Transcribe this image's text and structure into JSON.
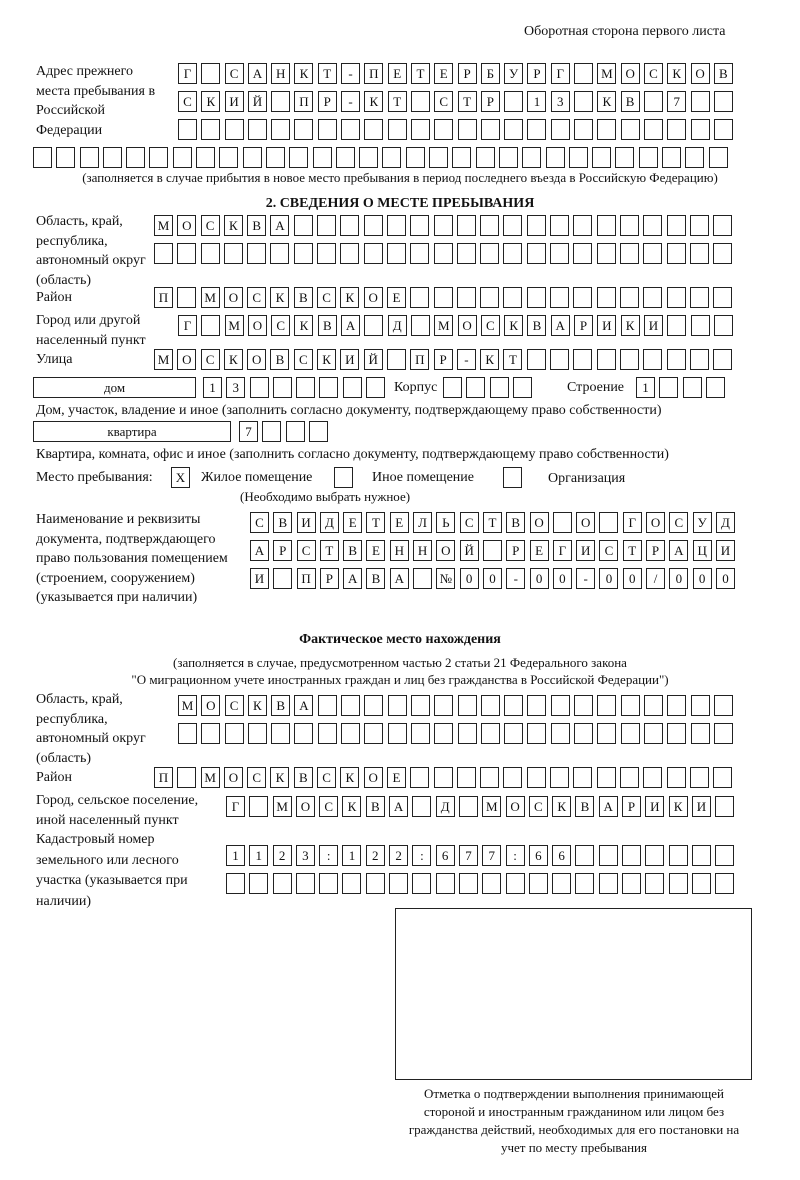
{
  "header": {
    "sheet_side": "Оборотная сторона первого листа"
  },
  "previous_address": {
    "label": "Адрес прежнего места пребывания в Российской Федерации",
    "rows": [
      "Г САНКТ-ПЕТЕРБУРГ МОСКОВ",
      "СКИЙ ПР-КТ СТР 13 КВ 7  ",
      "                        ",
      "                              "
    ],
    "note": "(заполняется в случае прибытия в новое место пребывания в период последнего въезда в Российскую Федерацию)"
  },
  "section2": {
    "title": "2. СВЕДЕНИЯ О МЕСТЕ ПРЕБЫВАНИЯ",
    "region_label": "Область, край, республика, автономный округ (область)",
    "region_rows": [
      "МОСКВА                   ",
      "                         "
    ],
    "district_label": "Район",
    "district_row": "П МОСКВСКОЕ              ",
    "city_label": "Город или другой населенный пункт",
    "city_row": "Г МОСКВА Д МОСКВАРИКИ   ",
    "street_label": "Улица",
    "street_row": "МОСКОВСКИЙ ПР-КТ         ",
    "house_type": "дом",
    "house_row": "13      ",
    "korpus_label": "Корпус",
    "korpus_row": "    ",
    "building_label": "Строение",
    "building_row": "1   ",
    "house_note": "Дом, участок, владение и иное (заполнить согласно документу, подтверждающему право собственности)",
    "apartment_type": "квартира",
    "apartment_row": "7   ",
    "apartment_note": "Квартира, комната, офис и иное (заполнить согласно документу, подтверждающему право собственности)",
    "place_label": "Место пребывания:",
    "options": [
      {
        "label": "Жилое помещение",
        "mark": "Х"
      },
      {
        "label": "Иное помещение",
        "mark": ""
      },
      {
        "label": "Организация",
        "mark": ""
      }
    ],
    "choose_note": "(Необходимо выбрать нужное)",
    "document_label": "Наименование и реквизиты документа, подтверждающего право пользования помещением (строением, сооружением) (указывается при наличии)",
    "document_rows": [
      "СВИДЕТЕЛЬСТВО О ГОСУД",
      "АРСТВЕННОЙ РЕГИСТРАЦИ",
      "И ПРАВА №00-00-00/000"
    ]
  },
  "actual_location": {
    "title": "Фактическое место нахождения",
    "note_line1": "(заполняется в случае, предусмотренном частью 2 статьи 21 Федерального закона",
    "note_line2": "\"О миграционном учете иностранных граждан и лиц без гражданства в Российской Федерации\")",
    "region_label": "Область, край, республика, автономный округ (область)",
    "region_rows": [
      "МОСКВА                  ",
      "                        "
    ],
    "district_label": "Район",
    "district_row": "П МОСКВСКОЕ              ",
    "city_label": "Город, сельское поселение, иной населенный пункт",
    "city_row": "Г МОСКВА Д МОСКВАРИКИ ",
    "cadastral_label": "Кадастровый номер земельного или лесного участка (указывается при наличии)",
    "cadastral_rows": [
      "1123:122:677:66       ",
      "                      "
    ]
  },
  "confirmation": {
    "caption": "Отметка о подтверждении выполнения принимающей стороной и иностранным гражданином или лицом без гражданства действий, необходимых для его постановки на учет по месту пребывания"
  }
}
